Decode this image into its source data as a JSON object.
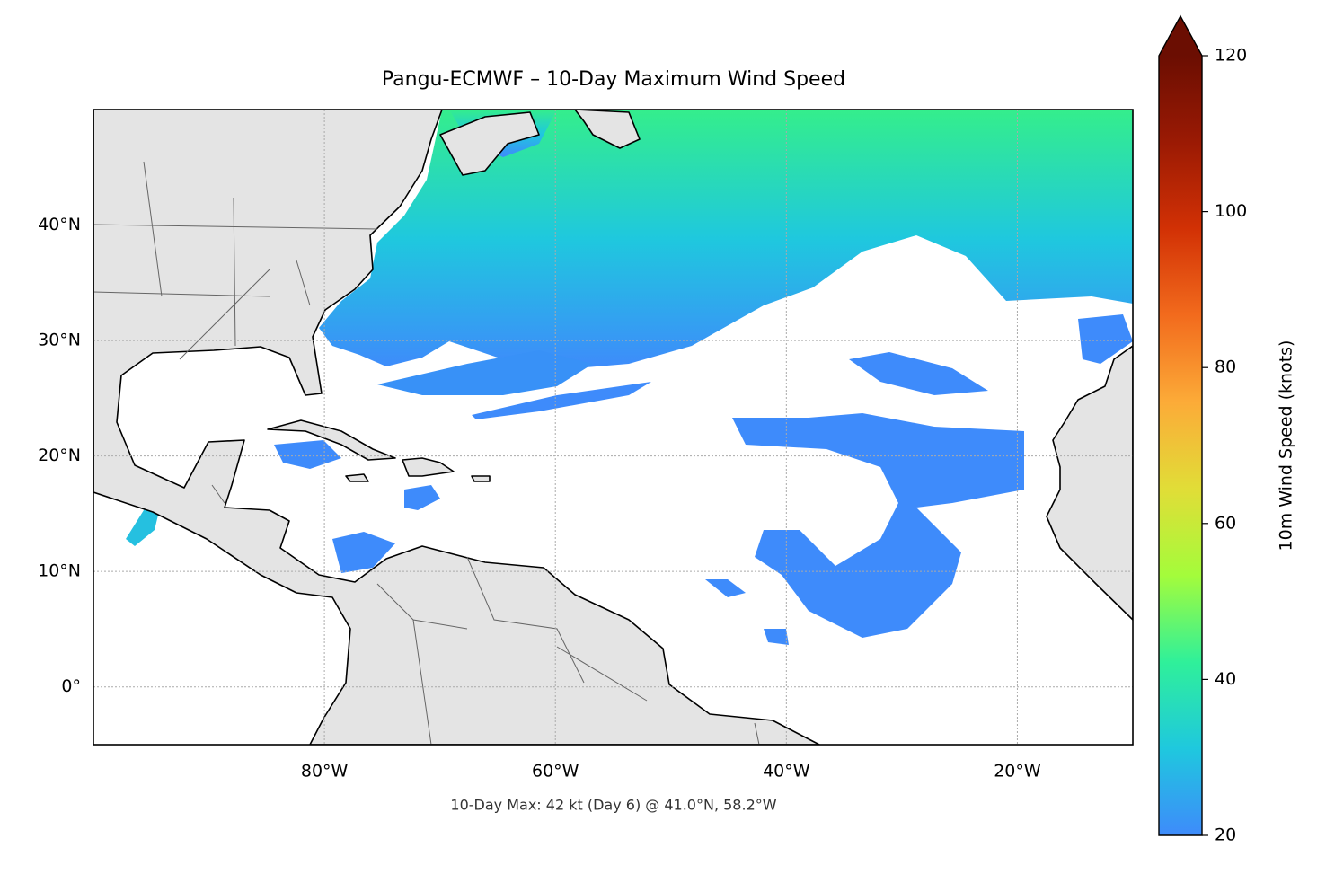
{
  "chart_data": {
    "type": "map",
    "title": "Pangu-ECMWF – 10-Day Maximum Wind Speed",
    "annotation": "10-Day Max: 42 kt (Day 6) @ 41.0°N, 58.2°W",
    "xlim": [
      -100,
      -10
    ],
    "ylim": [
      -5,
      50
    ],
    "xticks": [
      {
        "value": -80,
        "label": "80°W"
      },
      {
        "value": -60,
        "label": "60°W"
      },
      {
        "value": -40,
        "label": "40°W"
      },
      {
        "value": -20,
        "label": "20°W"
      }
    ],
    "yticks": [
      {
        "value": 0,
        "label": "0°"
      },
      {
        "value": 10,
        "label": "10°N"
      },
      {
        "value": 20,
        "label": "20°N"
      },
      {
        "value": 30,
        "label": "30°N"
      },
      {
        "value": 40,
        "label": "40°N"
      }
    ],
    "grid": true,
    "colorbar": {
      "label": "10m Wind Speed (knots)",
      "lim": [
        20,
        120
      ],
      "ticks": [
        20,
        40,
        60,
        80,
        100,
        120
      ],
      "extend": "max",
      "colormap": [
        "#3e8bfb",
        "#1fc8de",
        "#2ff09a",
        "#a4fc3b",
        "#e1dd37",
        "#fcab38",
        "#f26b1d",
        "#d23105",
        "#9b1a04",
        "#6b0e02"
      ]
    }
  }
}
